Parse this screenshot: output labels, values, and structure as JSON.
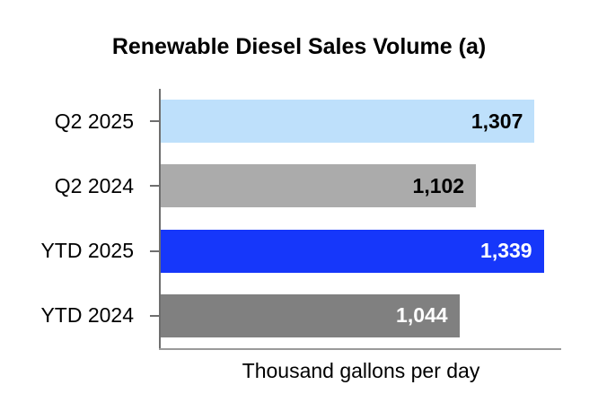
{
  "chart_data": {
    "type": "bar",
    "orientation": "horizontal",
    "title": "Renewable Diesel Sales Volume (a)",
    "xlabel": "Thousand gallons per day",
    "ylabel": "",
    "categories": [
      "Q2 2025",
      "Q2 2024",
      "YTD 2025",
      "YTD 2024"
    ],
    "values": [
      1307,
      1102,
      1339,
      1044
    ],
    "value_labels": [
      "1,307",
      "1,102",
      "1,339",
      "1,044"
    ],
    "bar_colors": [
      "#BEE0FB",
      "#ABABAB",
      "#1637FA",
      "#808080"
    ],
    "value_label_colors": [
      "#000000",
      "#000000",
      "#FFFFFF",
      "#FFFFFF"
    ],
    "xlim": [
      0,
      1400
    ],
    "grid": false,
    "legend": false,
    "value_labels_position": "inside-end",
    "axis_color": "#6E6E6E",
    "baseline_color": "#9A9A9A"
  }
}
